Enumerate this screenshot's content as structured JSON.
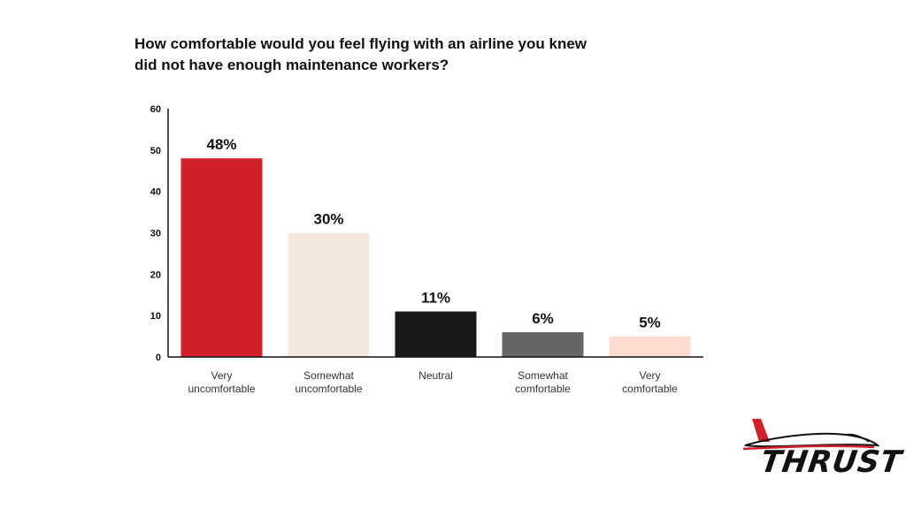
{
  "chart_data": {
    "type": "bar",
    "title_lines": [
      "How comfortable would you feel flying with an airline you knew",
      "did not have enough maintenance workers?"
    ],
    "categories": [
      [
        "Very",
        "uncomfortable"
      ],
      [
        "Somewhat",
        "uncomfortable"
      ],
      [
        "Neutral"
      ],
      [
        "Somewhat",
        "comfortable"
      ],
      [
        "Very",
        "comfortable"
      ]
    ],
    "values": [
      48,
      30,
      11,
      6,
      5
    ],
    "data_labels": [
      "48%",
      "30%",
      "11%",
      "6%",
      "5%"
    ],
    "colors": [
      "#d0202a",
      "#f4e8dc",
      "#1a1718",
      "#666666",
      "#fbdcd0"
    ],
    "ylim": [
      0,
      60
    ],
    "yticks": [
      0,
      10,
      20,
      30,
      40,
      50,
      60
    ],
    "grid": false,
    "xlabel": "",
    "ylabel": ""
  },
  "logo": {
    "text": "THRUST",
    "icon": "airplane-icon",
    "accent_color": "#d0202a"
  }
}
